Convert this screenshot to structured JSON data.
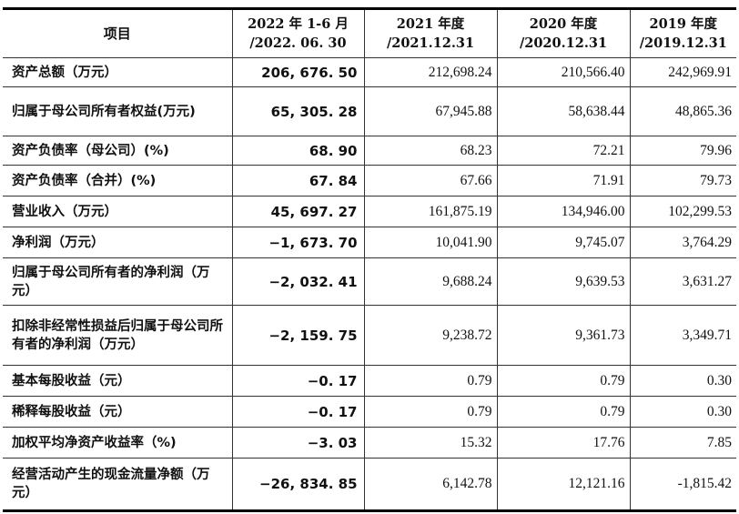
{
  "header": {
    "item": "项目",
    "periods": [
      [
        "2022 年 1-6 月",
        "/2022. 06. 30"
      ],
      [
        "2021 年度",
        "/2021.12.31"
      ],
      [
        "2020 年度",
        "/2020.12.31"
      ],
      [
        "2019 年度",
        "/2019.12.31"
      ]
    ]
  },
  "rows": [
    {
      "label": "资产总额（万元）",
      "values": [
        "206, 676. 50",
        "212,698.24",
        "210,566.40",
        "242,969.91"
      ]
    },
    {
      "label": "归属于母公司所有者权益(万元)",
      "values": [
        "65, 305. 28",
        "67,945.88",
        "58,638.44",
        "48,865.36"
      ]
    },
    {
      "label": "资产负债率（母公司）(%)",
      "values": [
        "68. 90",
        "68.23",
        "72.21",
        "79.96"
      ]
    },
    {
      "label": "资产负债率（合并）(%)",
      "values": [
        "67. 84",
        "67.66",
        "71.91",
        "79.73"
      ]
    },
    {
      "label": "营业收入（万元）",
      "values": [
        "45, 697. 27",
        "161,875.19",
        "134,946.00",
        "102,299.53"
      ]
    },
    {
      "label": "净利润（万元）",
      "values": [
        "−1, 673. 70",
        "10,041.90",
        "9,745.07",
        "3,764.29"
      ]
    },
    {
      "label": "归属于母公司所有者的净利润（万元）",
      "values": [
        "−2, 032. 41",
        "9,688.24",
        "9,639.53",
        "3,631.27"
      ]
    },
    {
      "label": "扣除非经常性损益后归属于母公司所有者的净利润（万元）",
      "values": [
        "−2, 159. 75",
        "9,238.72",
        "9,361.73",
        "3,349.71"
      ]
    },
    {
      "label": "基本每股收益（元）",
      "values": [
        "−0. 17",
        "0.79",
        "0.79",
        "0.30"
      ]
    },
    {
      "label": "稀释每股收益（元）",
      "values": [
        "−0. 17",
        "0.79",
        "0.79",
        "0.30"
      ]
    },
    {
      "label": "加权平均净资产收益率（%)",
      "values": [
        "−3. 03",
        "15.32",
        "17.76",
        "7.85"
      ]
    },
    {
      "label": "经营活动产生的现金流量净额（万元）",
      "values": [
        "−26, 834. 85",
        "6,142.78",
        "12,121.16",
        "-1,815.42"
      ]
    }
  ]
}
